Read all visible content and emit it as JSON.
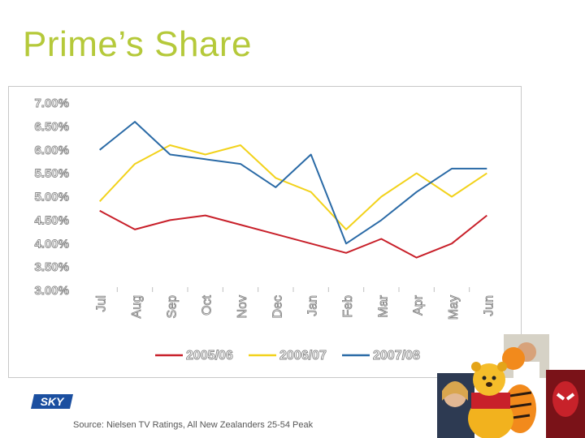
{
  "slide": {
    "title": "Prime’s Share",
    "source": "Source: Nielsen TV Ratings, All New Zealanders 25-54 Peak",
    "logo_text": "SKY"
  },
  "colors": {
    "title": "#b5c93a",
    "series_2005": "#c8202a",
    "series_2006": "#f2d21b",
    "series_2007": "#2a6aa6",
    "tick_text": "#888888"
  },
  "chart_data": {
    "type": "line",
    "categories": [
      "Jul",
      "Aug",
      "Sep",
      "Oct",
      "Nov",
      "Dec",
      "Jan",
      "Feb",
      "Mar",
      "Apr",
      "May",
      "Jun"
    ],
    "yticks": [
      "7.00%",
      "6.50%",
      "6.00%",
      "5.50%",
      "5.00%",
      "4.50%",
      "4.00%",
      "3.50%",
      "3.00%"
    ],
    "ylim": [
      3.0,
      7.0
    ],
    "grid": false,
    "legend_position": "bottom",
    "series": [
      {
        "name": "2005/06",
        "color": "#c8202a",
        "values": [
          4.7,
          4.3,
          4.5,
          4.6,
          4.4,
          4.2,
          4.0,
          3.8,
          4.1,
          3.7,
          4.0,
          4.6
        ]
      },
      {
        "name": "2006/07",
        "color": "#f2d21b",
        "values": [
          4.9,
          5.7,
          6.1,
          5.9,
          6.1,
          5.4,
          5.1,
          4.3,
          5.0,
          5.5,
          5.0,
          5.5
        ]
      },
      {
        "name": "2007/08",
        "color": "#2a6aa6",
        "values": [
          6.0,
          6.6,
          5.9,
          5.8,
          5.7,
          5.2,
          5.9,
          4.0,
          4.5,
          5.1,
          5.6,
          5.6
        ]
      }
    ]
  }
}
